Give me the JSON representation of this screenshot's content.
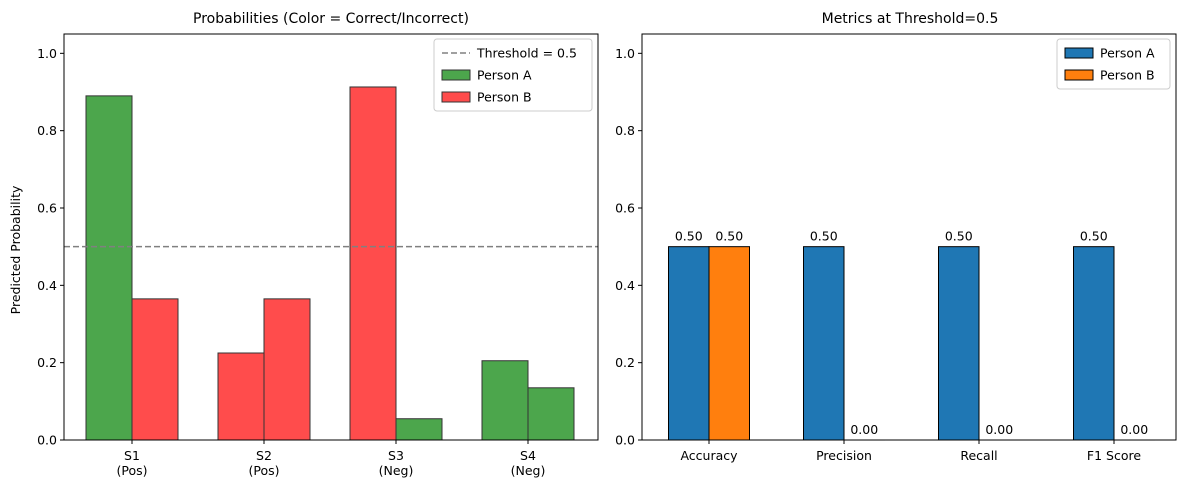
{
  "chart_data": [
    {
      "type": "bar",
      "title": "Probabilities (Color = Correct/Incorrect)",
      "xlabel": "",
      "ylabel": "Predicted Probability",
      "ylim": [
        0,
        1.05
      ],
      "yticks": [
        "0.0",
        "0.2",
        "0.4",
        "0.6",
        "0.8",
        "1.0"
      ],
      "categories": [
        [
          "S1",
          "(Pos)"
        ],
        [
          "S2",
          "(Pos)"
        ],
        [
          "S3",
          "(Neg)"
        ],
        [
          "S4",
          "(Neg)"
        ]
      ],
      "series": [
        {
          "name": "Person A",
          "values": [
            0.89,
            0.225,
            0.913,
            0.205
          ],
          "colors": [
            "#4ca64c",
            "#ff4c4c",
            "#ff4c4c",
            "#4ca64c"
          ]
        },
        {
          "name": "Person B",
          "values": [
            0.365,
            0.365,
            0.055,
            0.135
          ],
          "colors": [
            "#ff4c4c",
            "#ff4c4c",
            "#4ca64c",
            "#4ca64c"
          ]
        }
      ],
      "threshold": {
        "value": 0.5,
        "label": "Threshold = 0.5",
        "color": "#808080"
      },
      "legend": [
        {
          "type": "line",
          "label": "Threshold = 0.5",
          "color": "#808080"
        },
        {
          "type": "patch",
          "label": "Person A",
          "color": "#4ca64c"
        },
        {
          "type": "patch",
          "label": "Person B",
          "color": "#ff4c4c"
        }
      ],
      "legend_position": "top-right"
    },
    {
      "type": "bar",
      "title": "Metrics at Threshold=0.5",
      "xlabel": "",
      "ylabel": "",
      "ylim": [
        0,
        1.05
      ],
      "yticks": [
        "0.0",
        "0.2",
        "0.4",
        "0.6",
        "0.8",
        "1.0"
      ],
      "categories": [
        [
          "Accuracy"
        ],
        [
          "Precision"
        ],
        [
          "Recall"
        ],
        [
          "F1 Score"
        ]
      ],
      "series": [
        {
          "name": "Person A",
          "values": [
            0.5,
            0.5,
            0.5,
            0.5
          ],
          "color": "#1f77b4",
          "labels": [
            "0.50",
            "0.50",
            "0.50",
            "0.50"
          ]
        },
        {
          "name": "Person B",
          "values": [
            0.5,
            0.0,
            0.0,
            0.0
          ],
          "color": "#ff7f0e",
          "labels": [
            "0.50",
            "0.00",
            "0.00",
            "0.00"
          ]
        }
      ],
      "legend": [
        {
          "type": "patch",
          "label": "Person A",
          "color": "#1f77b4"
        },
        {
          "type": "patch",
          "label": "Person B",
          "color": "#ff7f0e"
        }
      ],
      "legend_position": "top-right"
    }
  ]
}
